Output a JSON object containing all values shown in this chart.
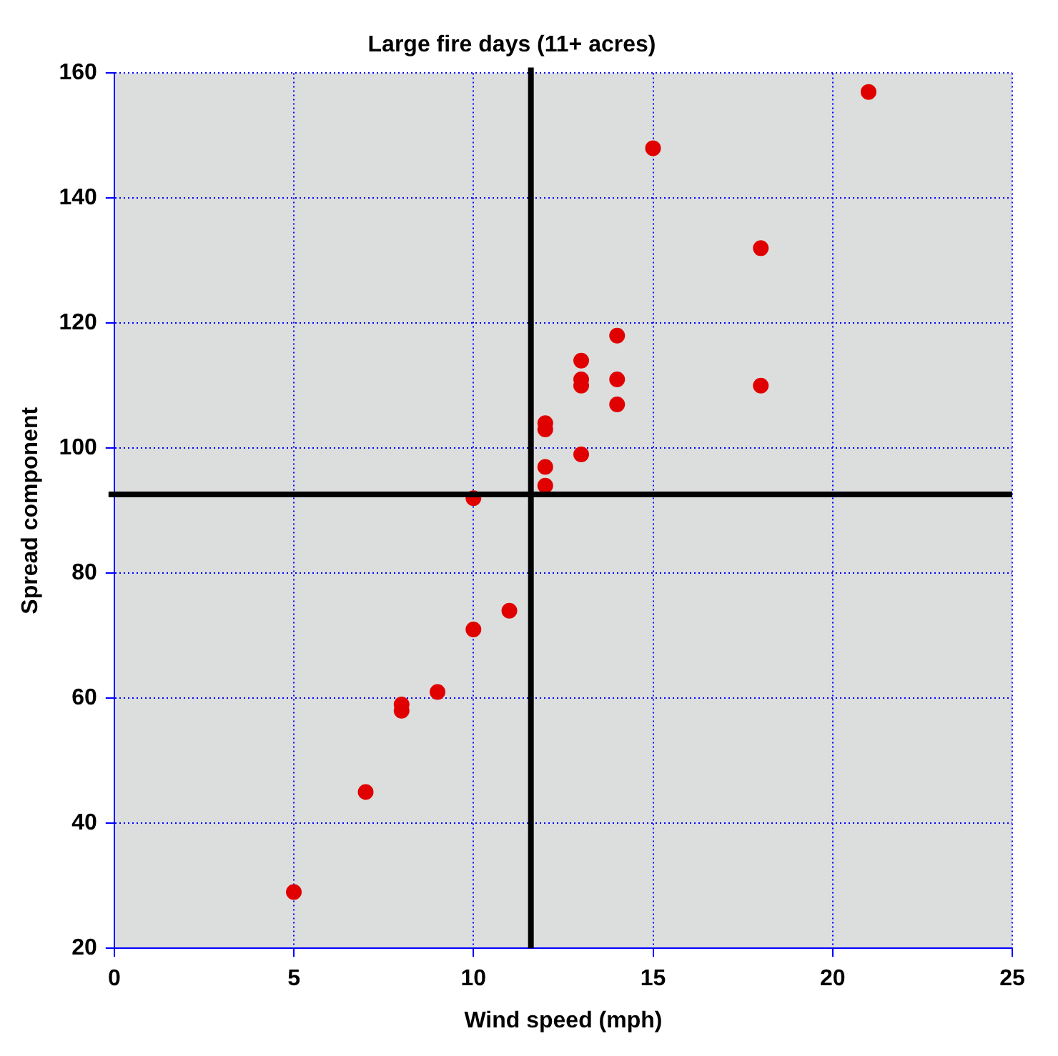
{
  "chart_data": {
    "type": "scatter",
    "title": "Large fire days (11+ acres)",
    "xlabel": "Wind speed (mph)",
    "ylabel": "Spread component",
    "x": [
      21,
      15,
      18,
      14,
      13,
      13,
      13,
      14,
      18,
      14,
      12,
      12,
      13,
      12,
      12,
      10,
      11,
      10,
      9,
      8,
      8,
      7,
      5
    ],
    "series": [
      {
        "color": "#e00000",
        "values": [
          157,
          148,
          132,
          118,
          114,
          111,
          110,
          111,
          110,
          107,
          104,
          103,
          99,
          97,
          94,
          92,
          74,
          71,
          61,
          59,
          58,
          45,
          29
        ]
      }
    ],
    "xlim": [
      0,
      25
    ],
    "xticks": [
      0,
      5,
      10,
      15,
      20,
      25
    ],
    "ylim": [
      20,
      160
    ],
    "yticks": [
      20,
      40,
      60,
      80,
      100,
      120,
      140,
      160
    ],
    "grid": true,
    "legend": false,
    "marker": "circle",
    "ref_lines": [
      {
        "axis": "x",
        "value": 11.6,
        "color": "#000000"
      },
      {
        "axis": "y",
        "value": 92.6,
        "color": "#000000"
      }
    ]
  }
}
